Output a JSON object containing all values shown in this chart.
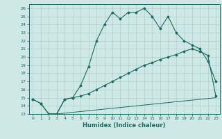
{
  "xlabel": "Humidex (Indice chaleur)",
  "bg_color": "#cde8e5",
  "grid_color": "#aed0cc",
  "line_color": "#1a6b60",
  "ylim": [
    13,
    26.5
  ],
  "xlim": [
    -0.5,
    23.5
  ],
  "yticks": [
    13,
    14,
    15,
    16,
    17,
    18,
    19,
    20,
    21,
    22,
    23,
    24,
    25,
    26
  ],
  "xticks": [
    0,
    1,
    2,
    3,
    4,
    5,
    6,
    7,
    8,
    9,
    10,
    11,
    12,
    13,
    14,
    15,
    16,
    17,
    18,
    19,
    20,
    21,
    22,
    23
  ],
  "curve1_x": [
    0,
    1,
    2,
    3,
    4,
    5,
    6,
    7,
    8,
    9,
    10,
    11,
    12,
    13,
    14,
    15,
    16,
    17,
    18,
    19,
    20,
    21,
    22,
    23
  ],
  "curve1_y": [
    14.8,
    14.3,
    13.0,
    13.0,
    14.8,
    15.0,
    16.5,
    18.8,
    22.0,
    24.0,
    25.5,
    24.7,
    25.5,
    25.5,
    26.0,
    25.0,
    23.5,
    25.0,
    23.0,
    22.0,
    21.5,
    21.0,
    19.5,
    17.0
  ],
  "curve2_x": [
    0,
    1,
    2,
    3,
    4,
    5,
    6,
    7,
    8,
    9,
    10,
    11,
    12,
    13,
    14,
    15,
    16,
    17,
    18,
    19,
    20,
    21,
    22,
    23
  ],
  "curve2_y": [
    14.8,
    14.3,
    13.0,
    13.0,
    14.8,
    15.0,
    15.2,
    15.5,
    16.0,
    16.5,
    17.0,
    17.5,
    18.0,
    18.5,
    19.0,
    19.3,
    19.7,
    20.0,
    20.3,
    20.7,
    21.0,
    20.7,
    20.2,
    15.2
  ],
  "curve3_x": [
    2,
    3,
    4,
    5,
    6,
    7,
    8,
    9,
    10,
    11,
    12,
    13,
    14,
    15,
    16,
    17,
    18,
    19,
    20,
    21,
    22,
    23
  ],
  "curve3_y": [
    13.0,
    13.0,
    13.1,
    13.2,
    13.3,
    13.4,
    13.5,
    13.6,
    13.7,
    13.8,
    13.9,
    14.0,
    14.1,
    14.2,
    14.3,
    14.4,
    14.5,
    14.6,
    14.7,
    14.8,
    14.9,
    15.0
  ]
}
